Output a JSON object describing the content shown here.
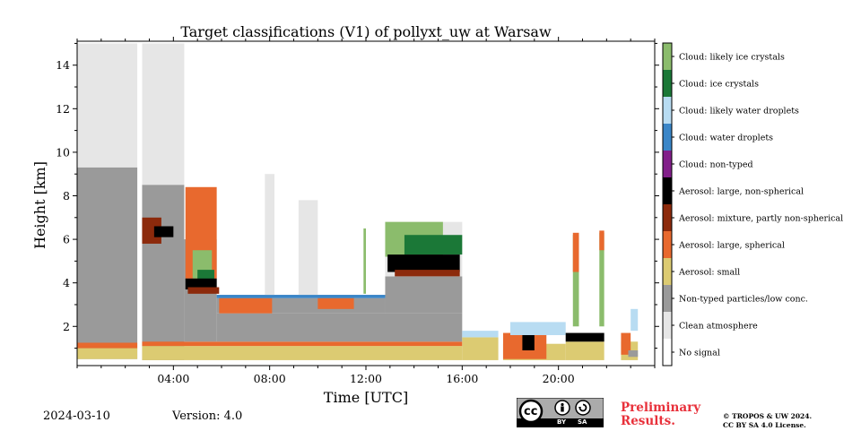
{
  "chart_data": {
    "type": "heatmap",
    "title": "Target classifications (V1) of pollyxt_uw at Warsaw",
    "xlabel": "Time [UTC]",
    "ylabel": "Height [km]",
    "xlim_hours": [
      0,
      24
    ],
    "ylim_km": [
      0.2,
      15.1
    ],
    "x_ticks": [
      {
        "hour": 4,
        "label": "04:00"
      },
      {
        "hour": 8,
        "label": "08:00"
      },
      {
        "hour": 12,
        "label": "12:00"
      },
      {
        "hour": 16,
        "label": "16:00"
      },
      {
        "hour": 20,
        "label": "20:00"
      }
    ],
    "y_ticks": [
      {
        "km": 2,
        "label": "2"
      },
      {
        "km": 4,
        "label": "4"
      },
      {
        "km": 6,
        "label": "6"
      },
      {
        "km": 8,
        "label": "8"
      },
      {
        "km": 10,
        "label": "10"
      },
      {
        "km": 12,
        "label": "12"
      },
      {
        "km": 14,
        "label": "14"
      }
    ],
    "legend_position": "right",
    "classes": [
      {
        "label": "No signal",
        "color": "#ffffff"
      },
      {
        "label": "Clean atmosphere",
        "color": "#e6e6e6"
      },
      {
        "label": "Non-typed particles/low conc.",
        "color": "#9a9a9a"
      },
      {
        "label": "Aerosol: small",
        "color": "#dccb72"
      },
      {
        "label": "Aerosol: large, spherical",
        "color": "#e8692e"
      },
      {
        "label": "Aerosol: mixture, partly non-spherical",
        "color": "#8c2a0c"
      },
      {
        "label": "Aerosol: large, non-spherical",
        "color": "#000000"
      },
      {
        "label": "Cloud: non-typed",
        "color": "#821f8a"
      },
      {
        "label": "Cloud: water droplets",
        "color": "#3a86c8"
      },
      {
        "label": "Cloud: likely water droplets",
        "color": "#b8dcf2"
      },
      {
        "label": "Cloud: ice crystals",
        "color": "#1b7837"
      },
      {
        "label": "Cloud: likely ice crystals",
        "color": "#8bbc6c"
      }
    ],
    "regions": [
      {
        "class": 1,
        "t0": 0.0,
        "t1": 2.5,
        "h0": 9.3,
        "h1": 15.0
      },
      {
        "class": 2,
        "t0": 0.0,
        "t1": 2.5,
        "h0": 0.5,
        "h1": 9.3
      },
      {
        "class": 3,
        "t0": 0.0,
        "t1": 2.5,
        "h0": 0.5,
        "h1": 1.0
      },
      {
        "class": 4,
        "t0": 0.0,
        "t1": 2.5,
        "h0": 1.0,
        "h1": 1.25
      },
      {
        "class": 1,
        "t0": 2.7,
        "t1": 4.45,
        "h0": 8.5,
        "h1": 15.0
      },
      {
        "class": 2,
        "t0": 2.7,
        "t1": 4.45,
        "h0": 0.45,
        "h1": 8.5
      },
      {
        "class": 3,
        "t0": 2.7,
        "t1": 16.0,
        "h0": 0.45,
        "h1": 1.1
      },
      {
        "class": 4,
        "t0": 2.7,
        "t1": 16.0,
        "h0": 1.1,
        "h1": 1.3
      },
      {
        "class": 5,
        "t0": 2.7,
        "t1": 3.5,
        "h0": 5.8,
        "h1": 7.0
      },
      {
        "class": 6,
        "t0": 3.2,
        "t1": 4.0,
        "h0": 6.1,
        "h1": 6.6
      },
      {
        "class": 2,
        "t0": 4.45,
        "t1": 5.8,
        "h0": 1.3,
        "h1": 6.0
      },
      {
        "class": 4,
        "t0": 4.5,
        "t1": 5.8,
        "h0": 4.2,
        "h1": 8.4
      },
      {
        "class": 11,
        "t0": 4.8,
        "t1": 5.6,
        "h0": 4.2,
        "h1": 5.5
      },
      {
        "class": 10,
        "t0": 5.0,
        "t1": 5.7,
        "h0": 4.0,
        "h1": 4.6
      },
      {
        "class": 6,
        "t0": 4.5,
        "t1": 5.8,
        "h0": 3.7,
        "h1": 4.2
      },
      {
        "class": 5,
        "t0": 4.6,
        "t1": 5.9,
        "h0": 3.5,
        "h1": 3.8
      },
      {
        "class": 2,
        "t0": 5.8,
        "t1": 16.0,
        "h0": 1.3,
        "h1": 2.6
      },
      {
        "class": 2,
        "t0": 5.8,
        "t1": 12.8,
        "h0": 2.6,
        "h1": 3.3
      },
      {
        "class": 4,
        "t0": 5.9,
        "t1": 8.1,
        "h0": 2.6,
        "h1": 3.3
      },
      {
        "class": 4,
        "t0": 10.0,
        "t1": 11.5,
        "h0": 2.8,
        "h1": 3.3
      },
      {
        "class": 8,
        "t0": 5.8,
        "t1": 12.8,
        "h0": 3.3,
        "h1": 3.45
      },
      {
        "class": 1,
        "t0": 9.2,
        "t1": 10.0,
        "h0": 3.45,
        "h1": 7.8
      },
      {
        "class": 1,
        "t0": 7.8,
        "t1": 8.2,
        "h0": 3.45,
        "h1": 9.0
      },
      {
        "class": 2,
        "t0": 12.8,
        "t1": 16.0,
        "h0": 2.6,
        "h1": 4.3
      },
      {
        "class": 1,
        "t0": 12.8,
        "t1": 16.0,
        "h0": 4.3,
        "h1": 6.8
      },
      {
        "class": 11,
        "t0": 12.8,
        "t1": 15.2,
        "h0": 5.2,
        "h1": 6.8
      },
      {
        "class": 10,
        "t0": 13.6,
        "t1": 16.0,
        "h0": 5.3,
        "h1": 6.2
      },
      {
        "class": 6,
        "t0": 12.9,
        "t1": 15.9,
        "h0": 4.5,
        "h1": 5.3
      },
      {
        "class": 5,
        "t0": 13.2,
        "t1": 15.9,
        "h0": 4.3,
        "h1": 4.6
      },
      {
        "class": 11,
        "t0": 11.9,
        "t1": 12.0,
        "h0": 3.5,
        "h1": 6.5
      },
      {
        "class": 3,
        "t0": 16.0,
        "t1": 17.5,
        "h0": 0.45,
        "h1": 1.5
      },
      {
        "class": 9,
        "t0": 16.0,
        "t1": 17.5,
        "h0": 1.5,
        "h1": 1.8
      },
      {
        "class": 3,
        "t0": 17.7,
        "t1": 20.3,
        "h0": 0.45,
        "h1": 1.2
      },
      {
        "class": 4,
        "t0": 17.7,
        "t1": 19.5,
        "h0": 0.5,
        "h1": 1.7
      },
      {
        "class": 6,
        "t0": 18.5,
        "t1": 19.0,
        "h0": 0.9,
        "h1": 1.6
      },
      {
        "class": 9,
        "t0": 18.0,
        "t1": 20.3,
        "h0": 1.6,
        "h1": 2.2
      },
      {
        "class": 3,
        "t0": 20.3,
        "t1": 21.9,
        "h0": 0.45,
        "h1": 1.3
      },
      {
        "class": 6,
        "t0": 20.3,
        "t1": 21.9,
        "h0": 1.3,
        "h1": 1.7
      },
      {
        "class": 11,
        "t0": 20.6,
        "t1": 20.85,
        "h0": 2.0,
        "h1": 6.2
      },
      {
        "class": 4,
        "t0": 20.6,
        "t1": 20.85,
        "h0": 4.5,
        "h1": 6.3
      },
      {
        "class": 11,
        "t0": 21.7,
        "t1": 21.9,
        "h0": 2.0,
        "h1": 6.3
      },
      {
        "class": 4,
        "t0": 21.7,
        "t1": 21.9,
        "h0": 5.5,
        "h1": 6.4
      },
      {
        "class": 3,
        "t0": 22.6,
        "t1": 23.3,
        "h0": 0.45,
        "h1": 1.3
      },
      {
        "class": 4,
        "t0": 22.6,
        "t1": 23.0,
        "h0": 0.7,
        "h1": 1.7
      },
      {
        "class": 2,
        "t0": 22.9,
        "t1": 23.3,
        "h0": 0.6,
        "h1": 0.9
      },
      {
        "class": 9,
        "t0": 23.0,
        "t1": 23.3,
        "h0": 1.8,
        "h1": 2.8
      }
    ]
  },
  "footer": {
    "date": "2024-03-10",
    "version": "Version: 4.0",
    "preliminary": [
      "Preliminary",
      "Results."
    ],
    "copyright": [
      "© TROPOS & UW 2024.",
      "CC BY SA 4.0 License."
    ],
    "cc_badge": {
      "cc": "cc",
      "by": "BY",
      "sa": "SA"
    }
  }
}
